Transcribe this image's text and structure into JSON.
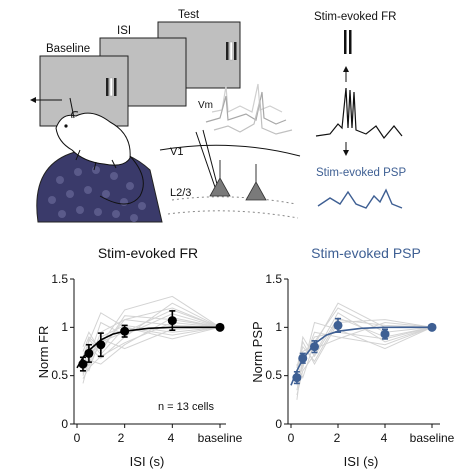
{
  "schematic": {
    "screen_labels": [
      "Baseline",
      "ISI",
      "Test"
    ],
    "vm_label": "Vm",
    "layer_labels": [
      "V1",
      "L2/3"
    ],
    "fr_label": "Stim-evoked FR",
    "psp_label": "Stim-evoked PSP"
  },
  "colors": {
    "fr": "#000000",
    "psp": "#3e5f93",
    "cells": "#d3d3d3",
    "screen": "#bfbfbf",
    "mouse_body": "#3a3a6a"
  },
  "chart_data": [
    {
      "type": "line",
      "title": "Stim-evoked FR",
      "xlabel": "ISI (s)",
      "ylabel": "Norm FR",
      "xticks": [
        "0",
        "2",
        "4",
        "baseline"
      ],
      "yticks": [
        "0",
        "0.5",
        "1",
        "1.5"
      ],
      "ylim": [
        0,
        1.5
      ],
      "annotation": "n = 13 cells",
      "mean": {
        "x": [
          0.25,
          0.5,
          1,
          2,
          4,
          6
        ],
        "y": [
          0.62,
          0.73,
          0.82,
          0.96,
          1.07,
          1.0
        ],
        "err": [
          0.07,
          0.09,
          0.12,
          0.06,
          0.1,
          0
        ]
      },
      "fit": {
        "x": [
          0,
          0.25,
          0.5,
          1,
          1.5,
          2,
          3,
          4,
          5,
          6
        ],
        "y": [
          0.58,
          0.69,
          0.76,
          0.87,
          0.93,
          0.96,
          0.99,
          1.0,
          1.0,
          1.0
        ]
      },
      "cells": [
        [
          0.55,
          0.72,
          0.82,
          1.18,
          1.32,
          1.0
        ],
        [
          0.47,
          0.58,
          0.7,
          0.84,
          1.05,
          1.0
        ],
        [
          0.75,
          0.9,
          0.78,
          1.08,
          1.2,
          1.0
        ],
        [
          0.62,
          0.55,
          0.9,
          1.02,
          0.95,
          1.0
        ],
        [
          0.42,
          0.66,
          0.62,
          0.82,
          1.1,
          1.0
        ],
        [
          0.7,
          0.85,
          1.15,
          1.0,
          0.92,
          1.0
        ],
        [
          0.58,
          0.8,
          0.68,
          0.9,
          1.25,
          1.0
        ],
        [
          0.66,
          0.62,
          0.95,
          1.08,
          1.02,
          1.0
        ],
        [
          0.5,
          0.7,
          0.88,
          0.78,
          0.98,
          1.0
        ],
        [
          0.8,
          0.95,
          0.75,
          1.12,
          1.08,
          1.0
        ],
        [
          0.6,
          0.68,
          1.05,
          0.92,
          1.14,
          1.0
        ],
        [
          0.52,
          0.88,
          0.72,
          1.0,
          0.88,
          1.0
        ],
        [
          0.68,
          0.6,
          0.85,
          0.95,
          1.18,
          1.0
        ]
      ]
    },
    {
      "type": "line",
      "title": "Stim-evoked PSP",
      "xlabel": "ISI (s)",
      "ylabel": "Norm PSP",
      "xticks": [
        "0",
        "2",
        "4",
        "baseline"
      ],
      "yticks": [
        "0",
        "0.5",
        "1",
        "1.5"
      ],
      "ylim": [
        0,
        1.5
      ],
      "mean": {
        "x": [
          0.25,
          0.5,
          1,
          2,
          4,
          6
        ],
        "y": [
          0.48,
          0.68,
          0.8,
          1.02,
          0.93,
          1.0
        ],
        "err": [
          0.06,
          0.05,
          0.06,
          0.07,
          0.05,
          0
        ]
      },
      "fit": {
        "x": [
          0,
          0.25,
          0.5,
          1,
          1.5,
          2,
          3,
          4,
          5,
          6
        ],
        "y": [
          0.4,
          0.55,
          0.67,
          0.83,
          0.92,
          0.96,
          0.99,
          1.0,
          1.0,
          1.0
        ]
      },
      "cells": [
        [
          0.3,
          0.55,
          0.72,
          1.15,
          0.85,
          1.0
        ],
        [
          0.55,
          0.8,
          0.65,
          1.08,
          1.02,
          1.0
        ],
        [
          0.4,
          0.62,
          0.95,
          0.9,
          0.82,
          1.0
        ],
        [
          0.62,
          0.48,
          0.85,
          1.2,
          0.95,
          1.0
        ],
        [
          0.25,
          0.72,
          0.78,
          0.88,
          1.05,
          1.0
        ],
        [
          0.5,
          0.9,
          0.7,
          1.1,
          0.9,
          1.0
        ],
        [
          0.45,
          0.58,
          1.05,
          0.98,
          0.78,
          1.0
        ],
        [
          0.6,
          0.75,
          0.82,
          1.25,
          1.0,
          1.0
        ],
        [
          0.35,
          0.66,
          0.9,
          0.95,
          0.88,
          1.0
        ],
        [
          0.58,
          0.85,
          0.62,
          1.05,
          1.08,
          1.0
        ]
      ]
    }
  ]
}
